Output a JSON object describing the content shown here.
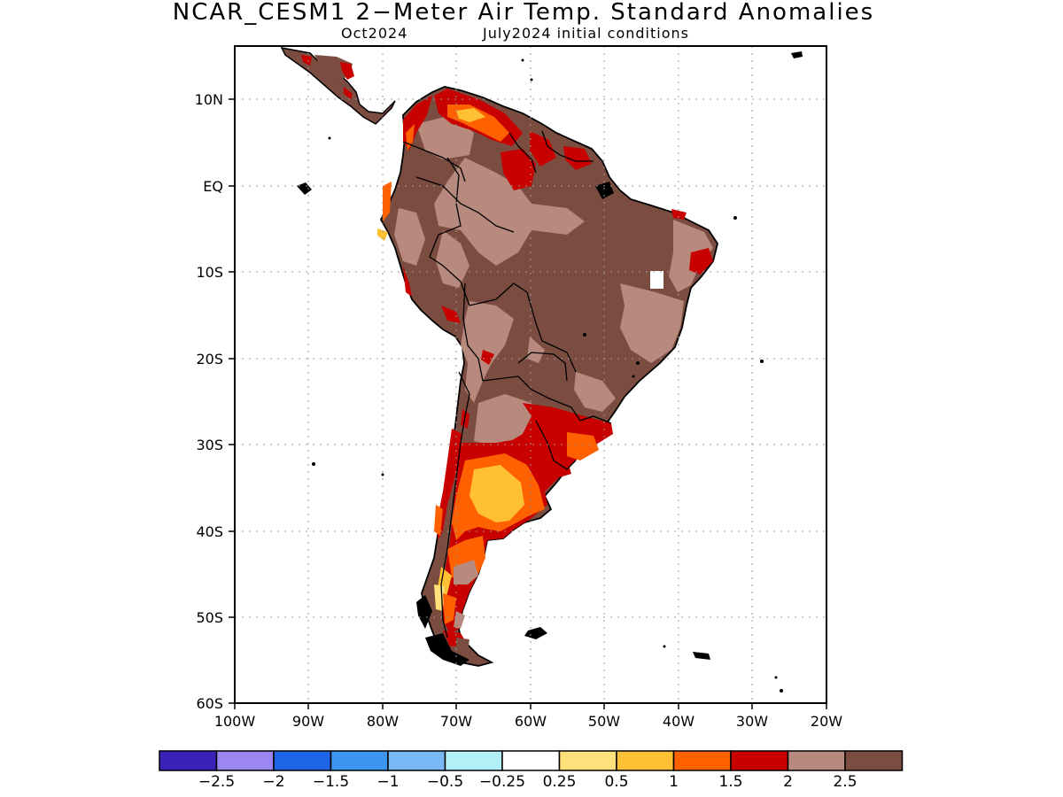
{
  "header": {
    "title": "NCAR_CESM1 2−Meter Air Temp. Standard Anomalies",
    "target_month": "Oct2024",
    "init_conditions": "July2024 initial conditions"
  },
  "map": {
    "region": "South America",
    "lat_labels": [
      "10N",
      "EQ",
      "10S",
      "20S",
      "30S",
      "40S",
      "50S",
      "60S"
    ],
    "lon_labels": [
      "100W",
      "90W",
      "80W",
      "70W",
      "60W",
      "50W",
      "40W",
      "30W",
      "20W"
    ],
    "grid": "dotted",
    "land_color": "#7a4d40",
    "ocean_color": "#ffffff"
  },
  "colorbar": {
    "colors": [
      "#3a22b8",
      "#9b86f2",
      "#1e64e6",
      "#3c96f0",
      "#78b9f5",
      "#b2f0f8",
      "#ffffff",
      "#ffe07a",
      "#ffc033",
      "#ff6000",
      "#c80000",
      "#b88a7e",
      "#7a4d40"
    ],
    "labels": [
      "−2.5",
      "−2",
      "−1.5",
      "−1",
      "−0.5",
      "−0.25",
      "0.25",
      "0.5",
      "1",
      "1.5",
      "2",
      "2.5"
    ]
  }
}
